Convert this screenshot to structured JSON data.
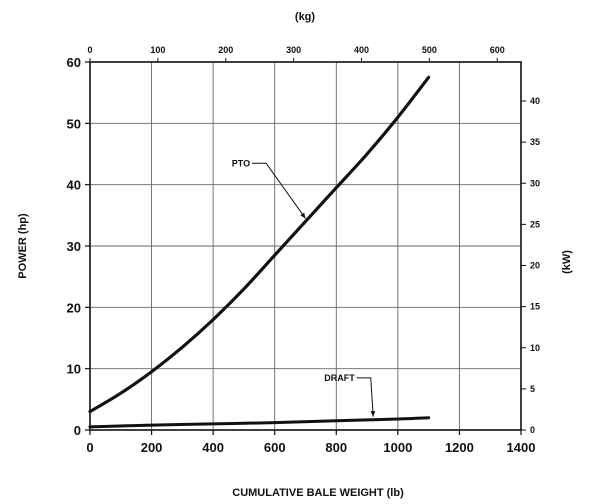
{
  "chart_data": {
    "type": "line",
    "x_unit_label": "CUMULATIVE BALE WEIGHT (lb)",
    "x_top_unit_label": "(kg)",
    "y_left_label": "POWER (hp)",
    "y_right_label": "(kW)",
    "xlim": [
      0,
      1400
    ],
    "ylim": [
      0,
      60
    ],
    "x_ticks": [
      0,
      200,
      400,
      600,
      800,
      1000,
      1200,
      1400
    ],
    "y_ticks": [
      0,
      10,
      20,
      30,
      40,
      50,
      60
    ],
    "x_top_ticks": [
      0,
      100,
      200,
      300,
      400,
      500,
      600
    ],
    "y_right_ticks": [
      0,
      5,
      10,
      15,
      20,
      25,
      30,
      35,
      40
    ],
    "grid": true,
    "series": [
      {
        "name": "PTO",
        "x": [
          0,
          100,
          200,
          300,
          400,
          500,
          600,
          700,
          800,
          900,
          1000,
          1100
        ],
        "y": [
          3,
          6,
          9.5,
          13.5,
          18,
          23,
          28.5,
          34,
          39.5,
          45,
          51,
          57.5
        ]
      },
      {
        "name": "DRAFT",
        "x": [
          0,
          200,
          400,
          600,
          800,
          1000,
          1100
        ],
        "y": [
          0.5,
          0.8,
          1.0,
          1.2,
          1.5,
          1.8,
          2.0
        ]
      }
    ],
    "annotations": [
      {
        "text": "PTO",
        "x": 520,
        "y": 43
      },
      {
        "text": "DRAFT",
        "x": 860,
        "y": 8
      }
    ]
  }
}
